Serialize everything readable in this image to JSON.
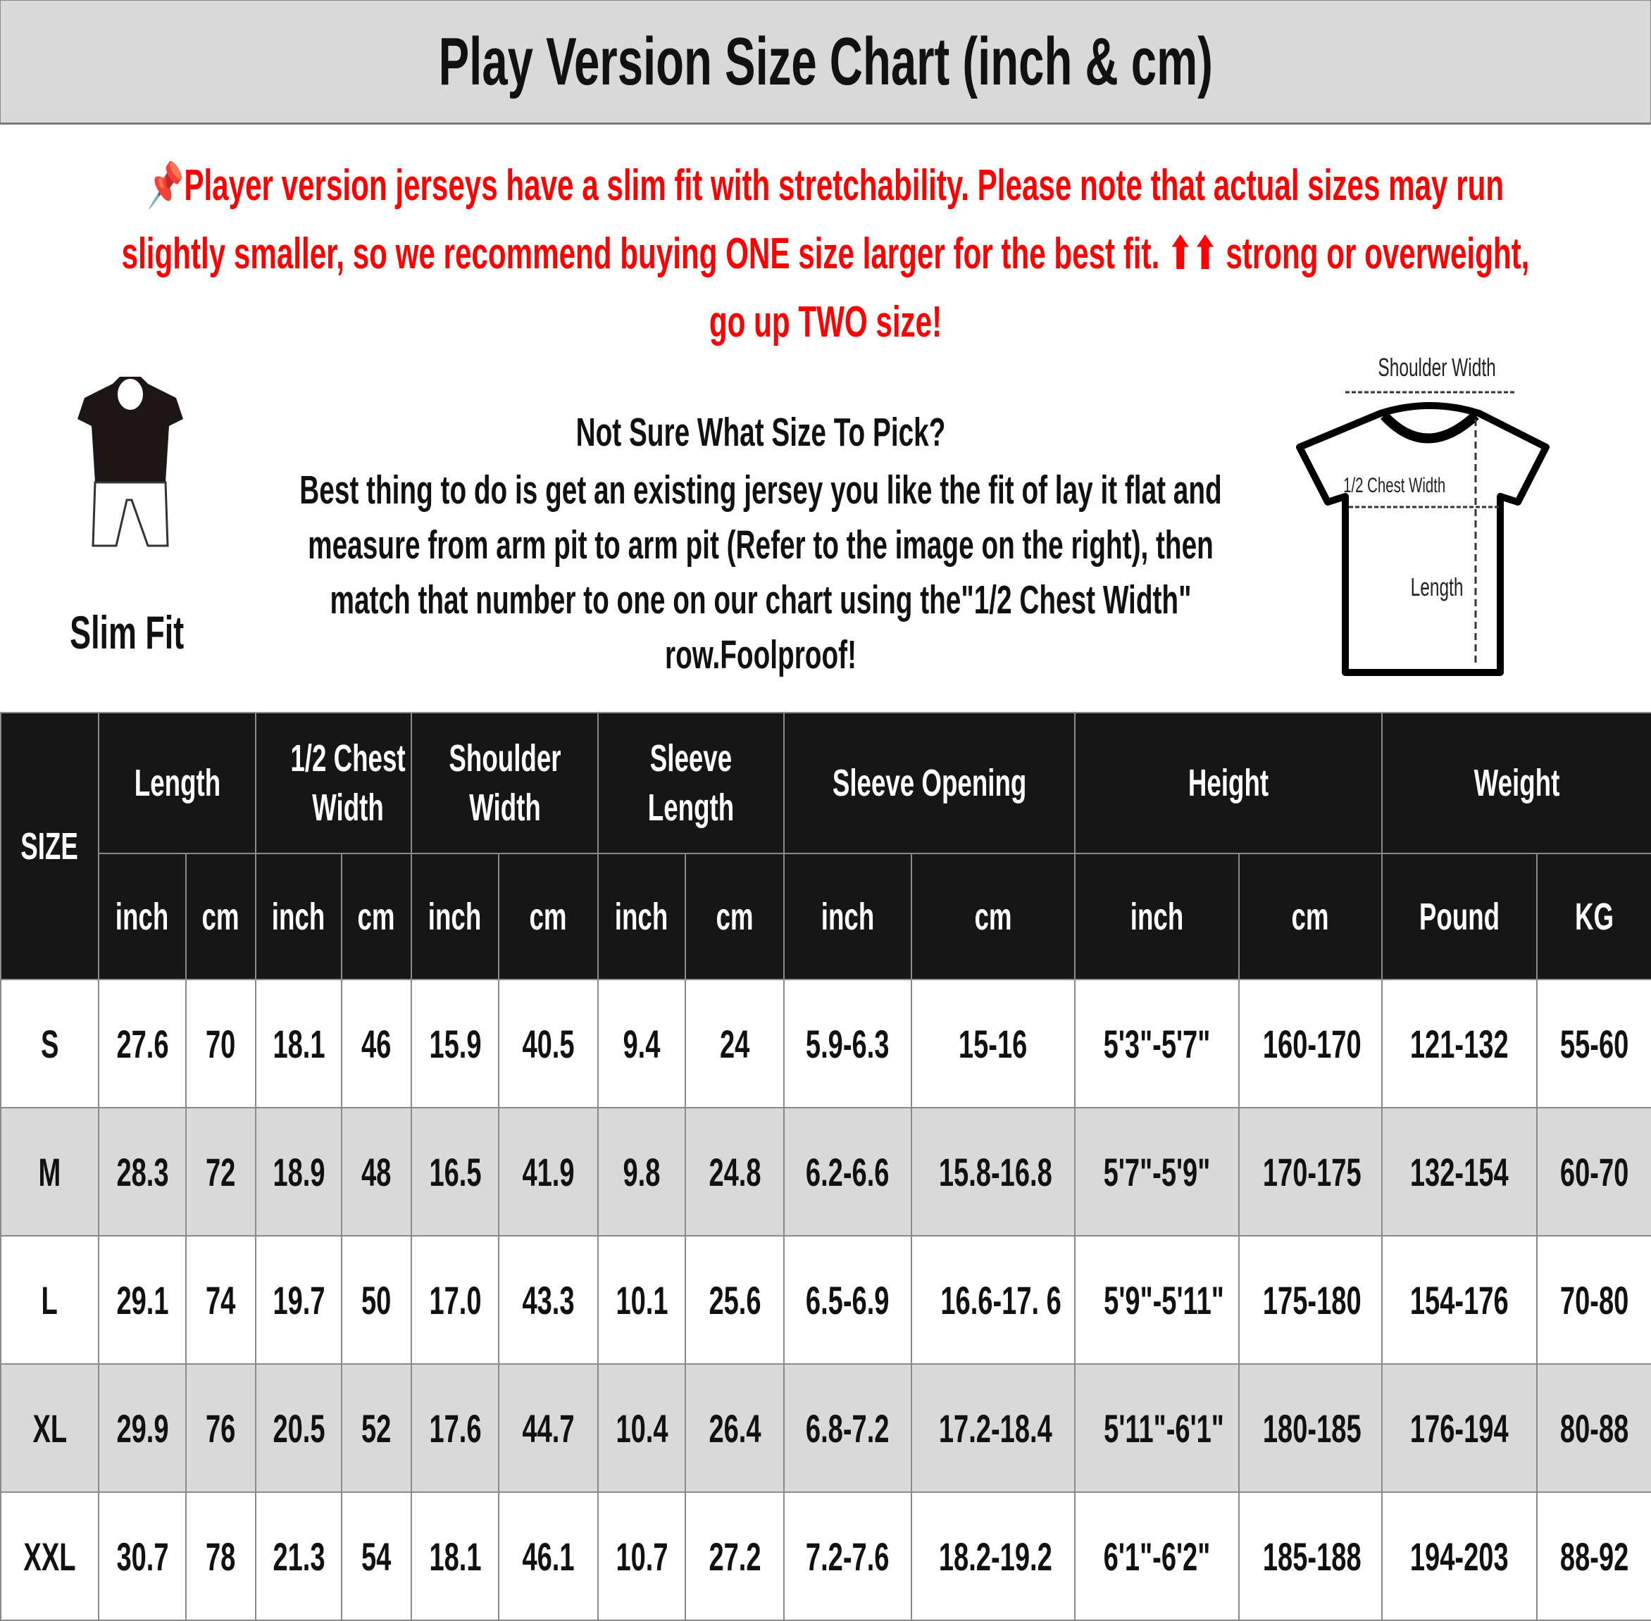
{
  "title": "Play Version Size Chart (inch & cm)",
  "notice": {
    "icon": "pushpin-icon",
    "color": "#ff0000",
    "text": "Player version jerseys have a slim fit with stretchability. Please note that actual sizes may run slightly smaller, so we recommend buying ONE size larger for the best fit. ⬆⬆ strong or overweight, go up TWO size!"
  },
  "info": {
    "heading": "Not Sure What Size To Pick?",
    "body": "Best thing to do is get an existing jersey you like the fit of lay it flat and measure from arm pit to arm pit (Refer to the image on the right), then match that number to one on our chart using the\"1/2 Chest Width\" row.Foolproof!"
  },
  "fit_label": "Slim Fit",
  "diagram": {
    "shoulder": "Shoulder Width",
    "chest": "1/2 Chest Width",
    "length": "Length"
  },
  "table": {
    "size_header": "SIZE",
    "groups": [
      "Length",
      "1/2 Chest Width",
      "Shoulder Width",
      "Sleeve Length",
      "Sleeve Opening",
      "Height",
      "Weight"
    ],
    "units": [
      "inch",
      "cm",
      "inch",
      "cm",
      "inch",
      "cm",
      "inch",
      "cm",
      "inch",
      "cm",
      "inch",
      "cm",
      "Pound",
      "KG"
    ],
    "rows": [
      [
        "S",
        "27.6",
        "70",
        "18.1",
        "46",
        "15.9",
        "40.5",
        "9.4",
        "24",
        "5.9-6.3",
        "15-16",
        "5'3\"-5'7\"",
        "160-170",
        "121-132",
        "55-60"
      ],
      [
        "M",
        "28.3",
        "72",
        "18.9",
        "48",
        "16.5",
        "41.9",
        "9.8",
        "24.8",
        "6.2-6.6",
        "15.8-16.8",
        "5'7\"-5'9\"",
        "170-175",
        "132-154",
        "60-70"
      ],
      [
        "L",
        "29.1",
        "74",
        "19.7",
        "50",
        "17.0",
        "43.3",
        "10.1",
        "25.6",
        "6.5-6.9",
        "16.6-17. 6",
        "5'9\"-5'11\"",
        "175-180",
        "154-176",
        "70-80"
      ],
      [
        "XL",
        "29.9",
        "76",
        "20.5",
        "52",
        "17.6",
        "44.7",
        "10.4",
        "26.4",
        "6.8-7.2",
        "17.2-18.4",
        "5'11\"-6'1\"",
        "180-185",
        "176-194",
        "80-88"
      ],
      [
        "XXL",
        "30.7",
        "78",
        "21.3",
        "54",
        "18.1",
        "46.1",
        "10.7",
        "27.2",
        "7.2-7.6",
        "18.2-19.2",
        "6'1\"-6'2\"",
        "185-188",
        "194-203",
        "88-92"
      ]
    ]
  }
}
